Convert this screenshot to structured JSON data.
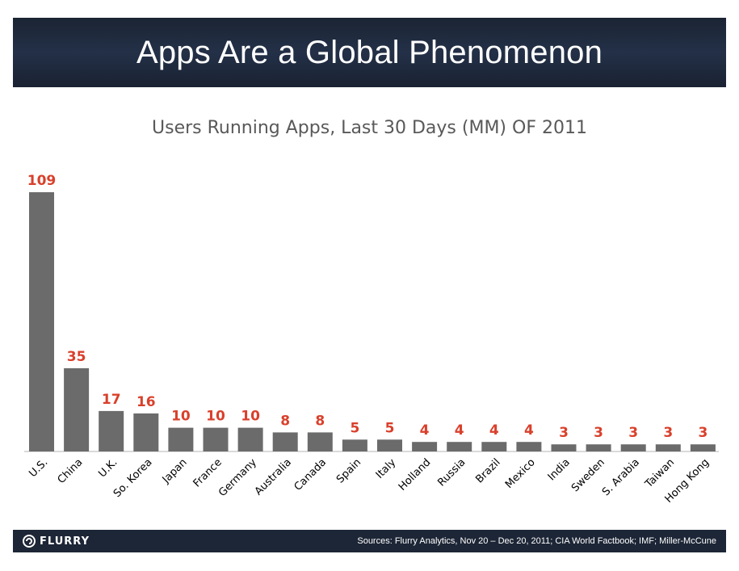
{
  "header": {
    "title": "Apps Are a Global Phenomenon"
  },
  "chart_data": {
    "type": "bar",
    "title": "Users Running Apps, Last 30 Days (MM) OF 2011",
    "xlabel": "",
    "ylabel": "",
    "ylim": [
      0,
      109
    ],
    "categories": [
      "U.S.",
      "China",
      "U.K.",
      "So. Korea",
      "Japan",
      "France",
      "Germany",
      "Australia",
      "Canada",
      "Spain",
      "Italy",
      "Holland",
      "Russia",
      "Brazil",
      "Mexico",
      "India",
      "Sweden",
      "S. Arabia",
      "Taiwan",
      "Hong Kong"
    ],
    "values": [
      109,
      35,
      17,
      16,
      10,
      10,
      10,
      8,
      8,
      5,
      5,
      4,
      4,
      4,
      4,
      3,
      3,
      3,
      3,
      3
    ],
    "value_labels": [
      "109",
      "35",
      "17",
      "16",
      "10",
      "10",
      "10",
      "8",
      "8",
      "5",
      "5",
      "4",
      "4",
      "4",
      "4",
      "3",
      "3",
      "3",
      "3",
      "3"
    ],
    "bar_color": "#6b6b6b",
    "label_color": "#d9402b"
  },
  "footer": {
    "logo_text": "FLURRY",
    "sources": "Sources: Flurry Analytics, Nov 20 – Dec 20, 2011; CIA World Factbook; IMF; Miller-McCune"
  }
}
